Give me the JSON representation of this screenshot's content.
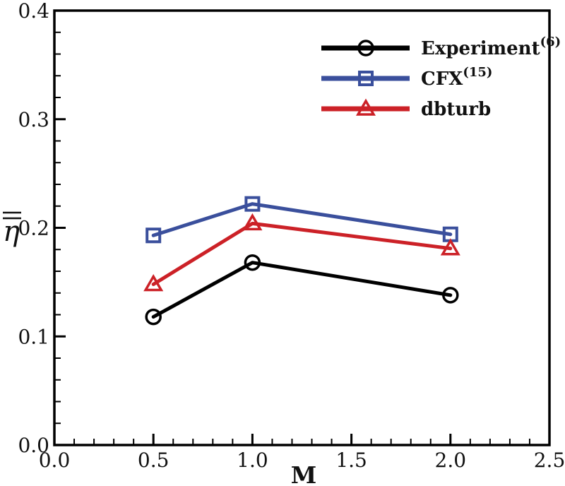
{
  "figure": {
    "background": "#ffffff"
  },
  "chart_data": {
    "type": "line",
    "title": "",
    "xlabel": "M",
    "ylabel": "η̿",
    "ylabel_base": "η",
    "ylabel_overbars": 2,
    "xlim": [
      0.0,
      2.5
    ],
    "ylim": [
      0.0,
      0.4
    ],
    "grid": false,
    "legend": {
      "position": "top-right-inside"
    },
    "x": [
      0.5,
      1.0,
      2.0
    ],
    "series": [
      {
        "name": "Experiment",
        "superscript": "(6)",
        "marker": "circle",
        "color": "#000000",
        "values": [
          0.118,
          0.168,
          0.138
        ]
      },
      {
        "name": "CFX",
        "superscript": "(15)",
        "marker": "square",
        "color": "#3A4F9C",
        "values": [
          0.193,
          0.222,
          0.194
        ]
      },
      {
        "name": "dbturb",
        "superscript": "",
        "marker": "triangle",
        "color": "#CC2127",
        "values": [
          0.148,
          0.204,
          0.181
        ]
      }
    ],
    "x_axis": {
      "major_ticks": [
        0.0,
        0.5,
        1.0,
        1.5,
        2.0,
        2.5
      ],
      "tick_labels": [
        "0.0",
        "0.5",
        "1.0",
        "1.5",
        "2.0",
        "2.5"
      ],
      "minor_step": 0.1
    },
    "y_axis": {
      "major_ticks": [
        0.0,
        0.1,
        0.2,
        0.3,
        0.4
      ],
      "tick_labels": [
        "0.0",
        "0.1",
        "0.2",
        "0.3",
        "0.4"
      ],
      "minor_step": 0.02
    }
  }
}
